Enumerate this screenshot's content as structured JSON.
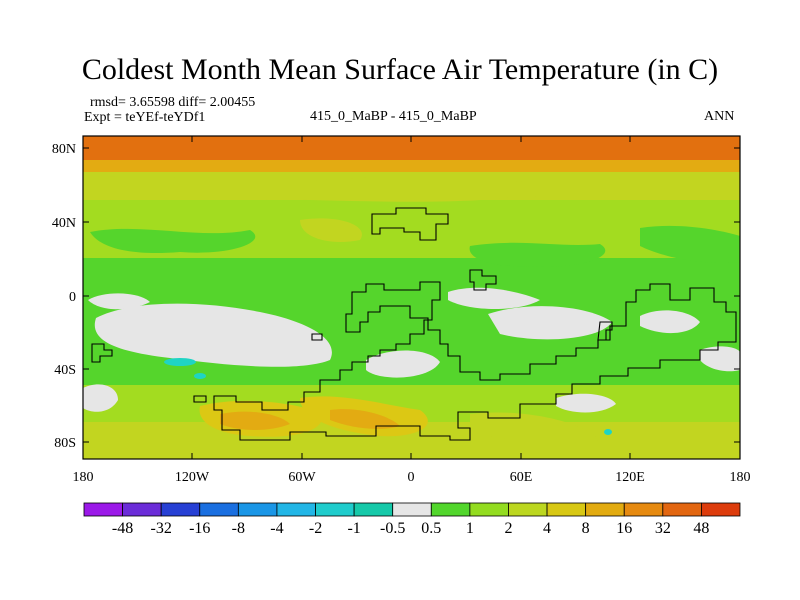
{
  "title": "Coldest Month Mean Surface Air Temperature (in C)",
  "stats_line": "rmsd= 3.65598  diff= 2.00455",
  "expt_line": "Expt = teYEf-teYDf1",
  "center_label": "415_0_MaBP - 415_0_MaBP",
  "season_label": "ANN",
  "lat_ticks": [
    "80N",
    "40N",
    "0",
    "40S",
    "80S"
  ],
  "lon_ticks": [
    "180",
    "120W",
    "60W",
    "0",
    "60E",
    "120E",
    "180"
  ],
  "colorbar": {
    "labels": [
      "-48",
      "-32",
      "-16",
      "-8",
      "-4",
      "-2",
      "-1",
      "-0.5",
      "0.5",
      "1",
      "2",
      "4",
      "8",
      "16",
      "32",
      "48"
    ],
    "colors": [
      "#9b19e8",
      "#6b2cd8",
      "#2740d4",
      "#1a6fe0",
      "#1a96e6",
      "#22b6e6",
      "#1fcccc",
      "#16c9a9",
      "#e6e6e6",
      "#52d62c",
      "#93dc20",
      "#bcd720",
      "#d8c814",
      "#e2ab10",
      "#e68a10",
      "#e26610",
      "#dd3c0c"
    ]
  },
  "colors": {
    "background": "#ffffff",
    "arctic_band": "#e2700f",
    "near_zero": "#e6e6e6",
    "slightly_warmer": "#55d52c",
    "warmer": "#a3dc20",
    "moderately_warmer": "#c2d520",
    "much_warmer": "#dcc814",
    "strongly_warmer": "#e3ab12",
    "cooler_cyan": "#1fd4c4"
  }
}
